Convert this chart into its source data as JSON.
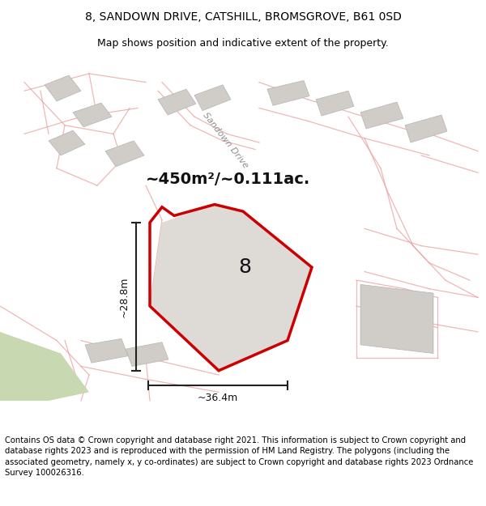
{
  "title_line1": "8, SANDOWN DRIVE, CATSHILL, BROMSGROVE, B61 0SD",
  "title_line2": "Map shows position and indicative extent of the property.",
  "footer_text": "Contains OS data © Crown copyright and database right 2021. This information is subject to Crown copyright and database rights 2023 and is reproduced with the permission of HM Land Registry. The polygons (including the associated geometry, namely x, y co-ordinates) are subject to Crown copyright and database rights 2023 Ordnance Survey 100026316.",
  "area_label": "~450m²/~0.111ac.",
  "number_label": "8",
  "dim_width": "~36.4m",
  "dim_height": "~28.8m",
  "road_label": "Sandown Drive",
  "map_bg": "#f0ece8",
  "road_line_color": "#e8a0a0",
  "building_fill": "#d0ccc8",
  "building_edge": "#b8b4b0",
  "red_poly_color": "#cc0000",
  "dim_line_color": "#222222",
  "text_color": "#111111",
  "road_text_color": "#909090"
}
